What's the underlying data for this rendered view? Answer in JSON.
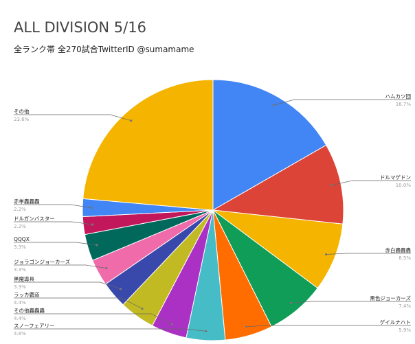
{
  "chart_data": {
    "type": "pie",
    "title": "ALL DIVISION 5/16",
    "subtitle": "全ランク帯 全270試合TwitterID @sumamame",
    "slices": [
      {
        "label": "ハムカツ団",
        "value": 16.7,
        "pct_text": "16.7%",
        "color": "#4285F4"
      },
      {
        "label": "ドルマゲドン",
        "value": 10.0,
        "pct_text": "10.0%",
        "color": "#DB4437"
      },
      {
        "label": "赤白轟轟轟",
        "value": 8.5,
        "pct_text": "8.5%",
        "color": "#F4B400"
      },
      {
        "label": "黒色ジョーカーズ",
        "value": 7.4,
        "pct_text": "7.4%",
        "color": "#0F9D58"
      },
      {
        "label": "ゲイルナハト",
        "value": 5.9,
        "pct_text": "5.9%",
        "color": "#FF6D00"
      },
      {
        "label": "スノーフェアリー",
        "value": 4.8,
        "pct_text": "4.8%",
        "color": "#46BDC6"
      },
      {
        "label": "その他轟轟轟",
        "value": 4.4,
        "pct_text": "4.4%",
        "color": "#AB30C4"
      },
      {
        "label": "ラッカ覇道",
        "value": 4.4,
        "pct_text": "4.4%",
        "color": "#C2BA23"
      },
      {
        "label": "黒魔導具",
        "value": 3.3,
        "pct_text": "3.3%",
        "color": "#3949AB"
      },
      {
        "label": "ジョラゴンジョーカーズ",
        "value": 3.3,
        "pct_text": "3.3%",
        "color": "#F06BAA"
      },
      {
        "label": "QQQX",
        "value": 3.3,
        "pct_text": "3.3%",
        "color": "#00695C"
      },
      {
        "label": "ドルガンバスター",
        "value": 2.2,
        "pct_text": "2.2%",
        "color": "#C2185B"
      },
      {
        "label": "赤単轟轟轟",
        "value": 2.2,
        "pct_text": "2.2%",
        "color": "#4285F4"
      },
      {
        "label": "その他",
        "value": 23.6,
        "pct_text": "23.6%",
        "color": "#F4B400"
      }
    ]
  }
}
